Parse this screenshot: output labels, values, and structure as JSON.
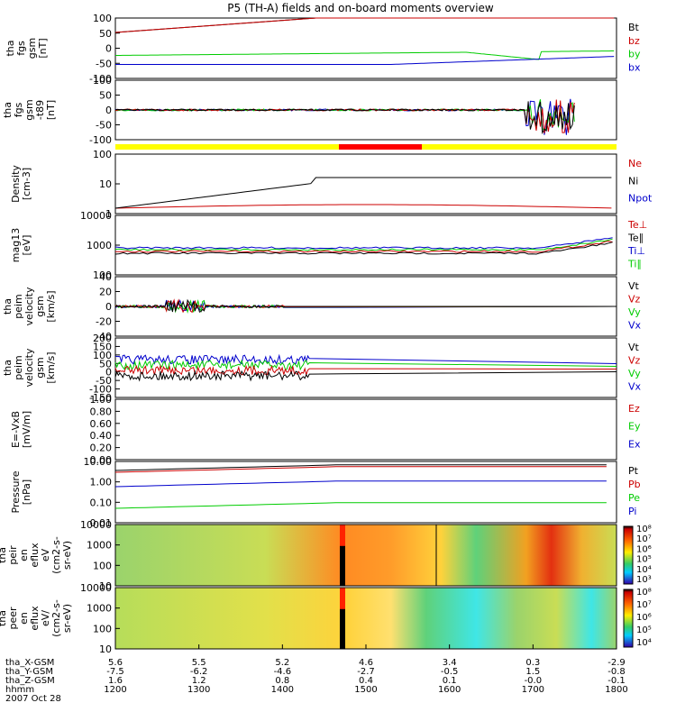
{
  "chart_data": {
    "type": "line",
    "title": "P5 (TH-A) fields and on-board moments overview",
    "date_label": "2007 Oct 28",
    "x_time": [
      "1200",
      "1300",
      "1400",
      "1500",
      "1600",
      "1700",
      "1800"
    ],
    "panels": [
      {
        "ylabel": [
          "tha",
          "fgs",
          "gsm",
          "[nT]"
        ],
        "yticks": [
          "100",
          "50",
          "0",
          "-50",
          "-100"
        ],
        "legend": [
          {
            "name": "Bt",
            "color": "#000000"
          },
          {
            "name": "bz",
            "color": "#cc0000"
          },
          {
            "name": "by",
            "color": "#00cc00"
          },
          {
            "name": "bx",
            "color": "#0000cc"
          }
        ]
      },
      {
        "ylabel": [
          "tha",
          "fgs",
          "gsm",
          "-t89",
          "[nT]"
        ],
        "yticks": [
          "100",
          "50",
          "0",
          "-50",
          "-100"
        ],
        "legend": []
      },
      {
        "ylabel": [
          "Density",
          "[cm-3]"
        ],
        "yticks": [
          "100",
          "10",
          "1"
        ],
        "legend": [
          {
            "name": "Ne",
            "color": "#cc0000"
          },
          {
            "name": "Ni",
            "color": "#000000"
          },
          {
            "name": "Npot",
            "color": "#0000cc"
          }
        ]
      },
      {
        "ylabel": [
          "mag13",
          "[eV]"
        ],
        "yticks": [
          "10000",
          "1000",
          "100"
        ],
        "legend": [
          {
            "name": "Te⊥",
            "color": "#cc0000"
          },
          {
            "name": "Te∥",
            "color": "#000000"
          },
          {
            "name": "Ti⊥",
            "color": "#0000cc"
          },
          {
            "name": "Ti∥",
            "color": "#00cc00"
          }
        ]
      },
      {
        "ylabel": [
          "tha",
          "peim",
          "velocity",
          "gsm",
          "[km/s]"
        ],
        "yticks": [
          "40",
          "20",
          "0",
          "-20",
          "-40"
        ],
        "legend": [
          {
            "name": "Vt",
            "color": "#000000"
          },
          {
            "name": "Vz",
            "color": "#cc0000"
          },
          {
            "name": "Vy",
            "color": "#00cc00"
          },
          {
            "name": "Vx",
            "color": "#0000cc"
          }
        ]
      },
      {
        "ylabel": [
          "tha",
          "peim",
          "velocity",
          "gsm",
          "[km/s]"
        ],
        "yticks": [
          "200",
          "150",
          "100",
          "50",
          "0",
          "-50",
          "-100",
          "-150"
        ],
        "legend": [
          {
            "name": "Vt",
            "color": "#000000"
          },
          {
            "name": "Vz",
            "color": "#cc0000"
          },
          {
            "name": "Vy",
            "color": "#00cc00"
          },
          {
            "name": "Vx",
            "color": "#0000cc"
          }
        ]
      },
      {
        "ylabel": [
          "E=-VxB",
          "[mV/m]"
        ],
        "yticks": [
          "1.00",
          "0.80",
          "0.60",
          "0.40",
          "0.20",
          "0.00"
        ],
        "legend": [
          {
            "name": "Ez",
            "color": "#cc0000"
          },
          {
            "name": "Ey",
            "color": "#00cc00"
          },
          {
            "name": "Ex",
            "color": "#0000cc"
          }
        ]
      },
      {
        "ylabel": [
          "Pressure",
          "[nPa]"
        ],
        "yticks": [
          "10.00",
          "1.00",
          "0.10",
          "0.01"
        ],
        "legend": [
          {
            "name": "Pt",
            "color": "#000000"
          },
          {
            "name": "Pb",
            "color": "#cc0000"
          },
          {
            "name": "Pe",
            "color": "#00cc00"
          },
          {
            "name": "Pi",
            "color": "#0000cc"
          }
        ]
      },
      {
        "ylabel": [
          "tha",
          "peir",
          "en",
          "eflux",
          "eV",
          "(cm2-s-",
          "sr-eV)"
        ],
        "yticks": [
          "10000",
          "1000",
          "100",
          "10"
        ],
        "colorbar": [
          "10⁸",
          "10⁷",
          "10⁶",
          "10⁵",
          "10⁴",
          "10³"
        ]
      },
      {
        "ylabel": [
          "tha",
          "peer",
          "en",
          "eflux",
          "eV/",
          "(cm2-s-",
          "sr-eV)"
        ],
        "yticks": [
          "10000",
          "1000",
          "100",
          "10"
        ],
        "colorbar": [
          "10⁸",
          "10⁷",
          "10⁶",
          "10⁵",
          "10⁴"
        ]
      }
    ],
    "orbit_labels": [
      "tha_X-GSM",
      "tha_Y-GSM",
      "tha_Z-GSM",
      "hhmm"
    ],
    "orbit_columns": [
      [
        "5.6",
        "-7.5",
        "1.6",
        "1200"
      ],
      [
        "5.5",
        "-6.2",
        "1.2",
        "1300"
      ],
      [
        "5.2",
        "-4.6",
        "0.8",
        "1400"
      ],
      [
        "4.6",
        "-2.7",
        "0.4",
        "1500"
      ],
      [
        "3.4",
        "-0.5",
        "0.1",
        "1600"
      ],
      [
        "0.3",
        "1.5",
        "-0.0",
        "1700"
      ],
      [
        "-2.9",
        "-0.8",
        "-0.1",
        "1800"
      ]
    ]
  }
}
